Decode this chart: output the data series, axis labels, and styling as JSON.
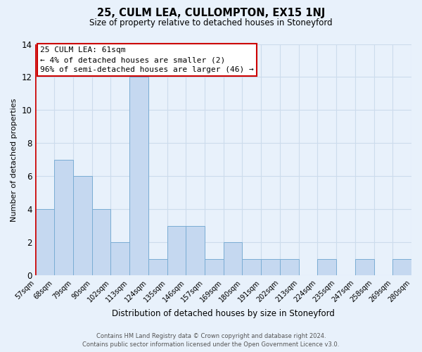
{
  "title": "25, CULM LEA, CULLOMPTON, EX15 1NJ",
  "subtitle": "Size of property relative to detached houses in Stoneyford",
  "xlabel": "Distribution of detached houses by size in Stoneyford",
  "ylabel": "Number of detached properties",
  "bar_labels": [
    "57sqm",
    "68sqm",
    "79sqm",
    "90sqm",
    "102sqm",
    "113sqm",
    "124sqm",
    "135sqm",
    "146sqm",
    "157sqm",
    "169sqm",
    "180sqm",
    "191sqm",
    "202sqm",
    "213sqm",
    "224sqm",
    "235sqm",
    "247sqm",
    "258sqm",
    "269sqm",
    "280sqm"
  ],
  "bar_heights": [
    4,
    7,
    6,
    4,
    2,
    12,
    1,
    3,
    3,
    1,
    2,
    1,
    1,
    1,
    0,
    1,
    0,
    1,
    0,
    1
  ],
  "bar_color": "#c5d8f0",
  "bar_edge_color": "#7aadd4",
  "ylim": [
    0,
    14
  ],
  "yticks": [
    0,
    2,
    4,
    6,
    8,
    10,
    12,
    14
  ],
  "annotation_line1": "25 CULM LEA: 61sqm",
  "annotation_line2": "← 4% of detached houses are smaller (2)",
  "annotation_line3": "96% of semi-detached houses are larger (46) →",
  "annotation_box_edgecolor": "#cc0000",
  "red_line_color": "#cc0000",
  "footer_line1": "Contains HM Land Registry data © Crown copyright and database right 2024.",
  "footer_line2": "Contains public sector information licensed under the Open Government Licence v3.0.",
  "grid_color": "#ccdcec",
  "bg_color": "#e8f1fb"
}
